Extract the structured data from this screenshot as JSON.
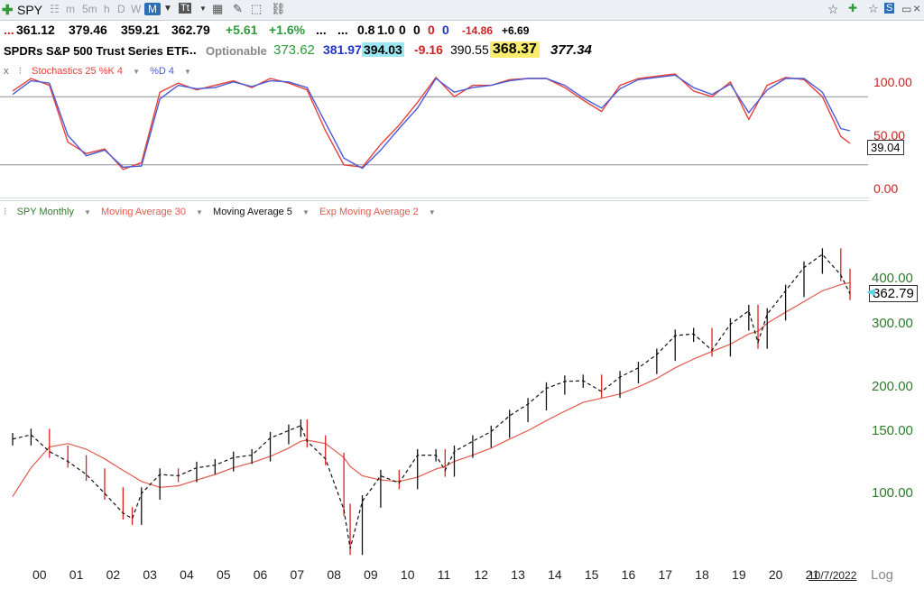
{
  "toolbar": {
    "symbol": "SPY",
    "timeframes": [
      "m",
      "5m",
      "h",
      "D",
      "W",
      "M"
    ],
    "active_timeframe": "M"
  },
  "quote": {
    "dots": "...",
    "open": "361.12",
    "high": "379.46",
    "low": "359.21",
    "close": "362.79",
    "change": "+5.61",
    "change_pct": "+1.6%",
    "dots2": "...",
    "dots3": "...",
    "v1": "0.8",
    "v2": "1.0",
    "z1": "0",
    "z2": "0",
    "z3": "0",
    "z4": "0",
    "neg": "-14.86",
    "pos": "+6.69"
  },
  "info": {
    "name": "SPDRs S&P 500 Trust Series ETF",
    "dots": "...",
    "optionable": "Optionable",
    "p1": "373.62",
    "p2": "381.97",
    "p3": "394.03",
    "p4": "-9.16",
    "p5": "390.55",
    "p6": "368.37",
    "p7": "377.34"
  },
  "stoch_legend": {
    "x": "x",
    "k": "Stochastics 25 %K 4",
    "d": "%D 4",
    "value": "39.04"
  },
  "price_legend": {
    "spy": "SPY Monthly",
    "ma30": "Moving Average 30",
    "ma5": "Moving Average 5",
    "ema2": "Exp Moving Average 2"
  },
  "footer": {
    "date": "10/7/2022",
    "log": "Log"
  },
  "colors": {
    "k_line": "#e8403a",
    "d_line": "#4a5bd6",
    "ma30": "#e05a4e",
    "ma5": "#111111",
    "axis_green": "#2f7a2a",
    "marker": "#59d6e8"
  },
  "chart_data": [
    {
      "type": "line",
      "title": "Stochastics 25 %K 4 / %D 4",
      "x_labels": [
        "00",
        "01",
        "02",
        "03",
        "04",
        "05",
        "06",
        "07",
        "08",
        "09",
        "10",
        "11",
        "12",
        "13",
        "14",
        "15",
        "16",
        "17",
        "18",
        "19",
        "20",
        "21"
      ],
      "x": [
        2000.0,
        2000.5,
        2001.0,
        2001.5,
        2002.0,
        2002.5,
        2003.0,
        2003.5,
        2004.0,
        2004.5,
        2005.0,
        2005.5,
        2006.0,
        2006.5,
        2007.0,
        2007.5,
        2008.0,
        2008.5,
        2009.0,
        2009.5,
        2010.0,
        2010.5,
        2011.0,
        2011.5,
        2012.0,
        2012.5,
        2013.0,
        2013.5,
        2014.0,
        2014.5,
        2015.0,
        2015.5,
        2016.0,
        2016.5,
        2017.0,
        2017.5,
        2018.0,
        2018.5,
        2019.0,
        2019.5,
        2020.0,
        2020.5,
        2021.0,
        2021.5,
        2022.0,
        2022.5,
        2022.75
      ],
      "series": [
        {
          "name": "%K",
          "values": [
            85,
            96,
            90,
            40,
            30,
            34,
            16,
            22,
            84,
            92,
            86,
            90,
            94,
            88,
            96,
            92,
            86,
            50,
            20,
            18,
            38,
            55,
            75,
            97,
            80,
            90,
            90,
            95,
            96,
            96,
            88,
            77,
            67,
            90,
            96,
            98,
            100,
            85,
            80,
            93,
            60,
            90,
            97,
            95,
            80,
            45,
            39
          ]
        },
        {
          "name": "%D",
          "values": [
            82,
            94,
            92,
            46,
            28,
            33,
            18,
            19,
            78,
            90,
            87,
            88,
            93,
            89,
            94,
            93,
            88,
            57,
            26,
            17,
            33,
            52,
            70,
            96,
            84,
            88,
            90,
            94,
            96,
            96,
            90,
            79,
            70,
            87,
            95,
            97,
            99,
            88,
            82,
            91,
            66,
            86,
            96,
            96,
            84,
            52,
            50
          ]
        }
      ],
      "ylim": [
        0,
        100
      ],
      "y_ticks": [
        "100.00",
        "50.00",
        "0.00"
      ],
      "reference_lines": [
        80,
        20
      ]
    },
    {
      "type": "line",
      "title": "SPY Monthly",
      "scale": "log",
      "x_labels": [
        "00",
        "01",
        "02",
        "03",
        "04",
        "05",
        "06",
        "07",
        "08",
        "09",
        "10",
        "11",
        "12",
        "13",
        "14",
        "15",
        "16",
        "17",
        "18",
        "19",
        "20",
        "21"
      ],
      "y_ticks": [
        "400.00",
        "300.00",
        "200.00",
        "150.00",
        "100.00"
      ],
      "ylim": [
        70,
        500
      ],
      "x": [
        2000.0,
        2000.5,
        2001.0,
        2001.5,
        2002.0,
        2002.5,
        2003.0,
        2003.25,
        2003.5,
        2004.0,
        2004.5,
        2005.0,
        2005.5,
        2006.0,
        2006.5,
        2007.0,
        2007.5,
        2007.83,
        2008.0,
        2008.5,
        2009.0,
        2009.17,
        2009.5,
        2010.0,
        2010.5,
        2011.0,
        2011.5,
        2011.75,
        2012.0,
        2012.5,
        2013.0,
        2013.5,
        2014.0,
        2014.5,
        2015.0,
        2015.5,
        2016.0,
        2016.5,
        2017.0,
        2017.5,
        2018.0,
        2018.5,
        2019.0,
        2019.5,
        2020.0,
        2020.25,
        2020.5,
        2021.0,
        2021.5,
        2022.0,
        2022.5,
        2022.75
      ],
      "series": [
        {
          "name": "SPY Monthly",
          "values": [
            142,
            146,
            131,
            123,
            113,
            100,
            88,
            85,
            100,
            113,
            112,
            118,
            120,
            126,
            128,
            143,
            150,
            155,
            140,
            125,
            90,
            70,
            95,
            112,
            107,
            128,
            128,
            116,
            131,
            140,
            149,
            165,
            178,
            197,
            206,
            207,
            193,
            212,
            225,
            245,
            277,
            280,
            252,
            298,
            325,
            265,
            318,
            370,
            430,
            468,
            410,
            363
          ]
        },
        {
          "name": "Moving Average 30",
          "values": [
            98,
            118,
            135,
            138,
            133,
            125,
            116,
            112,
            108,
            104,
            105,
            109,
            113,
            118,
            122,
            127,
            134,
            140,
            141,
            138,
            126,
            119,
            112,
            109,
            108,
            111,
            117,
            119,
            123,
            128,
            134,
            142,
            150,
            160,
            170,
            180,
            185,
            190,
            199,
            210,
            225,
            238,
            250,
            262,
            280,
            285,
            300,
            322,
            345,
            370,
            385,
            390
          ]
        }
      ]
    }
  ]
}
